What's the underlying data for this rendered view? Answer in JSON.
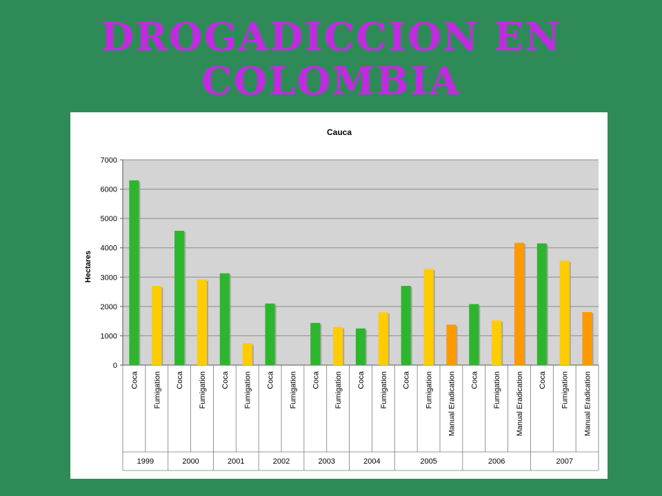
{
  "slide": {
    "title_line1": "DROGADICCION EN",
    "title_line2": "COLOMBIA"
  },
  "chart_data": {
    "type": "bar",
    "title": "Cauca",
    "ylabel": "Hectares",
    "xlabel": "",
    "ylim": [
      0,
      7000
    ],
    "yticks": [
      0,
      1000,
      2000,
      3000,
      4000,
      5000,
      6000,
      7000
    ],
    "grid": true,
    "colors": {
      "Coca": "#2db52d",
      "Fumigation": "#ffcc00",
      "Manual Eradication": "#ff9900"
    },
    "groups": [
      {
        "year": "1999",
        "bars": [
          {
            "label": "Coca",
            "value": 6300
          },
          {
            "label": "Fumigation",
            "value": 2700
          }
        ]
      },
      {
        "year": "2000",
        "bars": [
          {
            "label": "Coca",
            "value": 4580
          },
          {
            "label": "Fumigation",
            "value": 2920
          }
        ]
      },
      {
        "year": "2001",
        "bars": [
          {
            "label": "Coca",
            "value": 3130
          },
          {
            "label": "Fumigation",
            "value": 750
          }
        ]
      },
      {
        "year": "2002",
        "bars": [
          {
            "label": "Coca",
            "value": 2100
          },
          {
            "label": "Fumigation",
            "value": 0
          }
        ]
      },
      {
        "year": "2003",
        "bars": [
          {
            "label": "Coca",
            "value": 1440
          },
          {
            "label": "Fumigation",
            "value": 1300
          }
        ]
      },
      {
        "year": "2004",
        "bars": [
          {
            "label": "Coca",
            "value": 1250
          },
          {
            "label": "Fumigation",
            "value": 1800
          }
        ]
      },
      {
        "year": "2005",
        "bars": [
          {
            "label": "Coca",
            "value": 2700
          },
          {
            "label": "Fumigation",
            "value": 3280
          },
          {
            "label": "Manual Eradication",
            "value": 1380
          }
        ]
      },
      {
        "year": "2006",
        "bars": [
          {
            "label": "Coca",
            "value": 2080
          },
          {
            "label": "Fumigation",
            "value": 1520
          },
          {
            "label": "Manual Eradication",
            "value": 4170
          }
        ]
      },
      {
        "year": "2007",
        "bars": [
          {
            "label": "Coca",
            "value": 4150
          },
          {
            "label": "Fumigation",
            "value": 3560
          },
          {
            "label": "Manual Eradication",
            "value": 1810
          }
        ]
      }
    ]
  }
}
